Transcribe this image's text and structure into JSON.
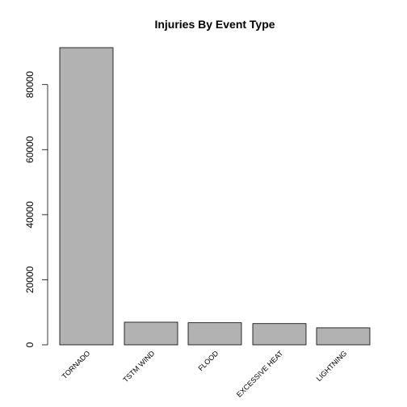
{
  "chart_data": {
    "type": "bar",
    "title": "Injuries By Event Type",
    "xlabel": "",
    "ylabel": "",
    "categories": [
      "TORNADO",
      "TSTM WIND",
      "FLOOD",
      "EXCESSIVE HEAT",
      "LIGHTNING"
    ],
    "values": [
      91346,
      6957,
      6789,
      6525,
      5230
    ],
    "yticks": [
      0,
      20000,
      40000,
      60000,
      80000
    ],
    "ytick_labels": [
      "0",
      "20000",
      "40000",
      "60000",
      "80000"
    ],
    "ylim": [
      0,
      91346
    ],
    "grid": false,
    "bar_color": "#b2b2b2",
    "bar_edge_color": "#000000"
  }
}
